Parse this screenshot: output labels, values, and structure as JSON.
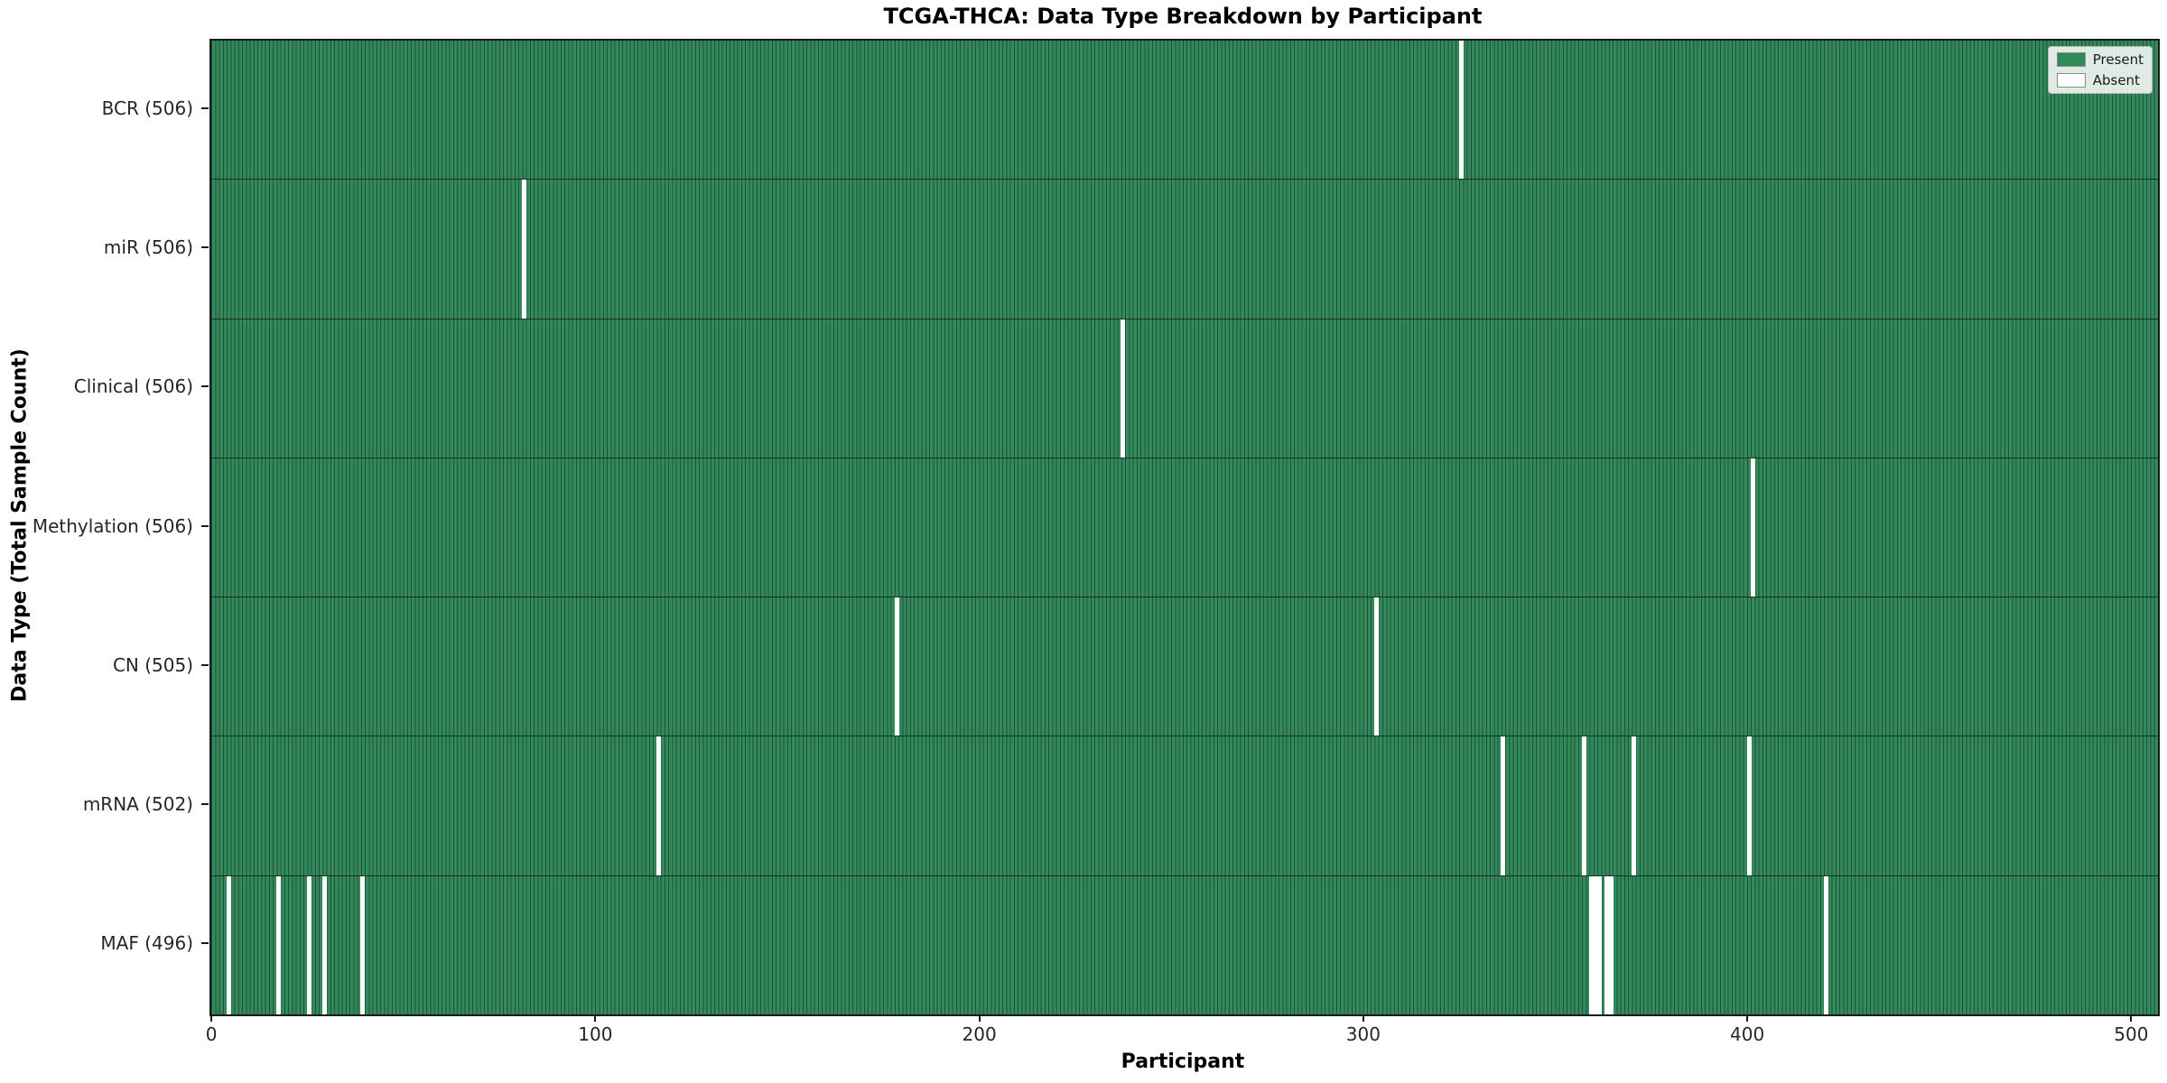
{
  "chart_data": {
    "type": "heatmap",
    "title": "TCGA-THCA: Data Type Breakdown by Participant",
    "xlabel": "Participant",
    "ylabel": "Data Type (Total Sample Count)",
    "x_ticks": [
      0,
      100,
      200,
      300,
      400,
      500
    ],
    "n_participants": 507,
    "xlim": [
      0,
      507
    ],
    "grid": false,
    "legend_position": "upper right",
    "legend": [
      {
        "label": "Present",
        "color": "#2e8b57"
      },
      {
        "label": "Absent",
        "color": "#ffffff"
      }
    ],
    "rows": [
      {
        "key": "bcr",
        "label": "BCR (506)",
        "total_samples": 506,
        "absent_participants": [
          325
        ]
      },
      {
        "key": "mir",
        "label": "miR (506)",
        "total_samples": 506,
        "absent_participants": [
          81
        ]
      },
      {
        "key": "clinical",
        "label": "Clinical (506)",
        "total_samples": 506,
        "absent_participants": [
          237
        ]
      },
      {
        "key": "methylation",
        "label": "Methylation (506)",
        "total_samples": 506,
        "absent_participants": [
          401
        ]
      },
      {
        "key": "cn",
        "label": "CN (505)",
        "total_samples": 505,
        "absent_participants": [
          178,
          303
        ]
      },
      {
        "key": "mrna",
        "label": "mRNA (502)",
        "total_samples": 502,
        "absent_participants": [
          116,
          336,
          357,
          370,
          400
        ]
      },
      {
        "key": "maf",
        "label": "MAF (496)",
        "total_samples": 496,
        "absent_participants": [
          4,
          17,
          25,
          29,
          39,
          359,
          360,
          361,
          363,
          364,
          420
        ]
      }
    ],
    "colors": {
      "present_fill": "#33895c",
      "present_edge": "#1c5236",
      "absent_fill": "#ffffff",
      "row_divider": "#16321f",
      "axis_spine": "#1a1a1a",
      "tick_text": "#262626"
    }
  }
}
